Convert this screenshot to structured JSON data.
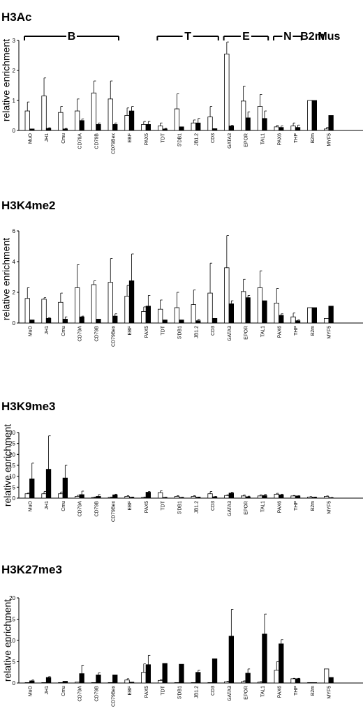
{
  "colors": {
    "open_bar": "#ffffff",
    "filled_bar": "#000000",
    "axis": "#000000"
  },
  "chart_data": [
    {
      "type": "bar",
      "title": "H3Ac",
      "ylabel": "relative enrichment",
      "ylim": [
        0,
        3
      ],
      "yticks": [
        0,
        1,
        2,
        3
      ],
      "grid": false,
      "legend": "none",
      "categories": [
        "MuO",
        "JH1",
        "Cmu",
        "CD79A",
        "CD79B",
        "CD79Bex",
        "EBF",
        "PAX5",
        "TDT",
        "5'DB1",
        "JB1.2",
        "CD3",
        "GATA3",
        "EPOR",
        "TAL1",
        "PAX6",
        "THP",
        "B2m",
        "MYF5"
      ],
      "series": [
        {
          "fill": "white",
          "values": [
            0.65,
            1.15,
            0.6,
            0.65,
            1.25,
            1.05,
            0.5,
            0.2,
            0.15,
            0.72,
            0.25,
            0.45,
            2.55,
            0.98,
            0.8,
            0.12,
            0.15,
            1.0,
            0.05
          ],
          "errors": [
            0.3,
            0.6,
            0.2,
            0.4,
            0.4,
            0.6,
            0.25,
            0.1,
            0.1,
            0.5,
            0.1,
            0.35,
            0.4,
            0.5,
            0.4,
            0.05,
            0.1,
            0,
            0.05
          ]
        },
        {
          "fill": "black",
          "values": [
            0.05,
            0.07,
            0.05,
            0.33,
            0.2,
            0.2,
            0.65,
            0.2,
            0.05,
            0.12,
            0.25,
            0.06,
            0.15,
            0.42,
            0.4,
            0.1,
            0.1,
            1.0,
            0.5
          ],
          "errors": [
            0,
            0.02,
            0.02,
            0.05,
            0.05,
            0.05,
            0.15,
            0.1,
            0.02,
            0,
            0.15,
            0,
            0.02,
            0.2,
            0.25,
            0.05,
            0.08,
            0,
            0
          ]
        }
      ],
      "groups": [
        {
          "label": "B",
          "from": 0,
          "to": 5
        },
        {
          "label": "T",
          "from": 8,
          "to": 11
        },
        {
          "label": "E",
          "from": 12,
          "to": 14
        },
        {
          "label": "N",
          "from": 15,
          "to": 16
        },
        {
          "label": "B2m",
          "from": 17,
          "to": 17
        },
        {
          "label": "Mus",
          "from": 18,
          "to": 18
        }
      ]
    },
    {
      "type": "bar",
      "title": "H3K4me2",
      "ylabel": "relative enrichment",
      "ylim": [
        0,
        6
      ],
      "yticks": [
        0,
        2,
        4,
        6
      ],
      "grid": false,
      "legend": "none",
      "categories": [
        "MuO",
        "JH1",
        "Cmu",
        "CD79A",
        "CD79B",
        "CD79Bex",
        "EBF",
        "PAX5",
        "TDT",
        "5'DB1",
        "JB1.2",
        "CD3",
        "GATA3",
        "EPOR",
        "TAL1",
        "PAX6",
        "THP",
        "B2m",
        "MYF5"
      ],
      "series": [
        {
          "fill": "white",
          "values": [
            1.6,
            1.55,
            1.35,
            2.3,
            2.5,
            2.65,
            1.75,
            0.75,
            0.9,
            1.0,
            1.2,
            1.95,
            3.6,
            2.05,
            2.3,
            1.3,
            0.4,
            1.0,
            0.3
          ],
          "errors": [
            0.7,
            0.1,
            0.6,
            1.5,
            0.25,
            1.55,
            0.7,
            0.3,
            0.6,
            1.0,
            0.95,
            1.95,
            2.1,
            0.8,
            1.1,
            0.95,
            0.25,
            0,
            0
          ]
        },
        {
          "fill": "black",
          "values": [
            0.2,
            0.3,
            0.25,
            0.4,
            0.25,
            0.45,
            2.75,
            1.1,
            0.2,
            0.2,
            0.15,
            0.3,
            1.25,
            1.65,
            1.45,
            0.5,
            0.15,
            1.0,
            1.1
          ],
          "errors": [
            0,
            0.05,
            0.15,
            0.05,
            0,
            0.15,
            1.75,
            0.7,
            0,
            0,
            0.1,
            0,
            0.2,
            0.15,
            0,
            0.1,
            0.05,
            0,
            0
          ]
        }
      ]
    },
    {
      "type": "bar",
      "title": "H3K9me3",
      "ylabel": "relative enrichment",
      "ylim": [
        0,
        30
      ],
      "yticks": [
        0,
        5,
        10,
        15,
        20,
        25,
        30
      ],
      "grid": false,
      "legend": "none",
      "categories": [
        "MuO",
        "JH1",
        "Cmu",
        "CD79A",
        "CD79B",
        "CD79Bex",
        "EBF",
        "PAX5",
        "TDT",
        "5'DB1",
        "JB1.2",
        "CD3",
        "GATA3",
        "EPOR",
        "TAL1",
        "PAX6",
        "THP",
        "B2m",
        "MYF5"
      ],
      "series": [
        {
          "fill": "white",
          "values": [
            2.0,
            2.0,
            2.0,
            0.8,
            0.3,
            0.3,
            0.8,
            0.3,
            2.5,
            0.8,
            0.8,
            2.0,
            1.2,
            1.0,
            1.0,
            1.8,
            1.0,
            0.5,
            0.8
          ],
          "errors": [
            0.3,
            1.0,
            0.8,
            0.5,
            0.2,
            0.2,
            0.3,
            0.2,
            0.8,
            0.3,
            0.3,
            1.0,
            0.3,
            0.4,
            0.5,
            0.4,
            0.2,
            0.2,
            0.2
          ]
        },
        {
          "fill": "black",
          "values": [
            8.8,
            13.2,
            9.2,
            1.6,
            0.8,
            1.5,
            0.4,
            2.7,
            0.3,
            0.3,
            0.4,
            0.6,
            2.3,
            0.6,
            1.2,
            1.5,
            1.0,
            0.4,
            0.2
          ],
          "errors": [
            7.2,
            15.3,
            5.8,
            1.6,
            0.8,
            0.3,
            0.1,
            0.3,
            0.1,
            0.1,
            0.1,
            0.2,
            0.4,
            0.3,
            0.5,
            0.3,
            0.1,
            0.1,
            0.1
          ]
        }
      ]
    },
    {
      "type": "bar",
      "title": "H3K27me3",
      "ylabel": "relative enrichment",
      "ylim": [
        0,
        20
      ],
      "yticks": [
        0,
        5,
        10,
        15,
        20
      ],
      "grid": false,
      "legend": "none",
      "categories": [
        "MuO",
        "JH1",
        "Cmu",
        "CD79A",
        "CD79B",
        "CD79Bex",
        "EBF",
        "PAX5",
        "TDT",
        "5'DB1",
        "JB1.2",
        "CD3",
        "GATA3",
        "EPOR",
        "TAL1",
        "PAX6",
        "THP",
        "B2m",
        "MYF5"
      ],
      "series": [
        {
          "fill": "white",
          "values": [
            0.1,
            0.1,
            0.1,
            0.2,
            0.1,
            0.1,
            0.7,
            2.5,
            0.6,
            0.1,
            0.1,
            0.1,
            0.3,
            0.3,
            0.2,
            3.0,
            1.0,
            0.1,
            3.3
          ],
          "errors": [
            0,
            0,
            0,
            0,
            0,
            0,
            0.3,
            2.0,
            0.2,
            0,
            0,
            0,
            0.1,
            0.2,
            0.1,
            2.0,
            0.1,
            0,
            0
          ]
        },
        {
          "fill": "black",
          "values": [
            0.5,
            1.3,
            0.4,
            2.2,
            1.9,
            1.9,
            0.2,
            4.3,
            4.6,
            4.4,
            2.5,
            5.7,
            11.0,
            2.3,
            11.5,
            9.2,
            1.0,
            0.1,
            1.3
          ],
          "errors": [
            0.2,
            0.2,
            0,
            2.0,
            0.5,
            0,
            0,
            2.2,
            0,
            0,
            0.5,
            0,
            6.3,
            1.0,
            4.7,
            1.0,
            0.1,
            0,
            0
          ]
        }
      ]
    }
  ]
}
